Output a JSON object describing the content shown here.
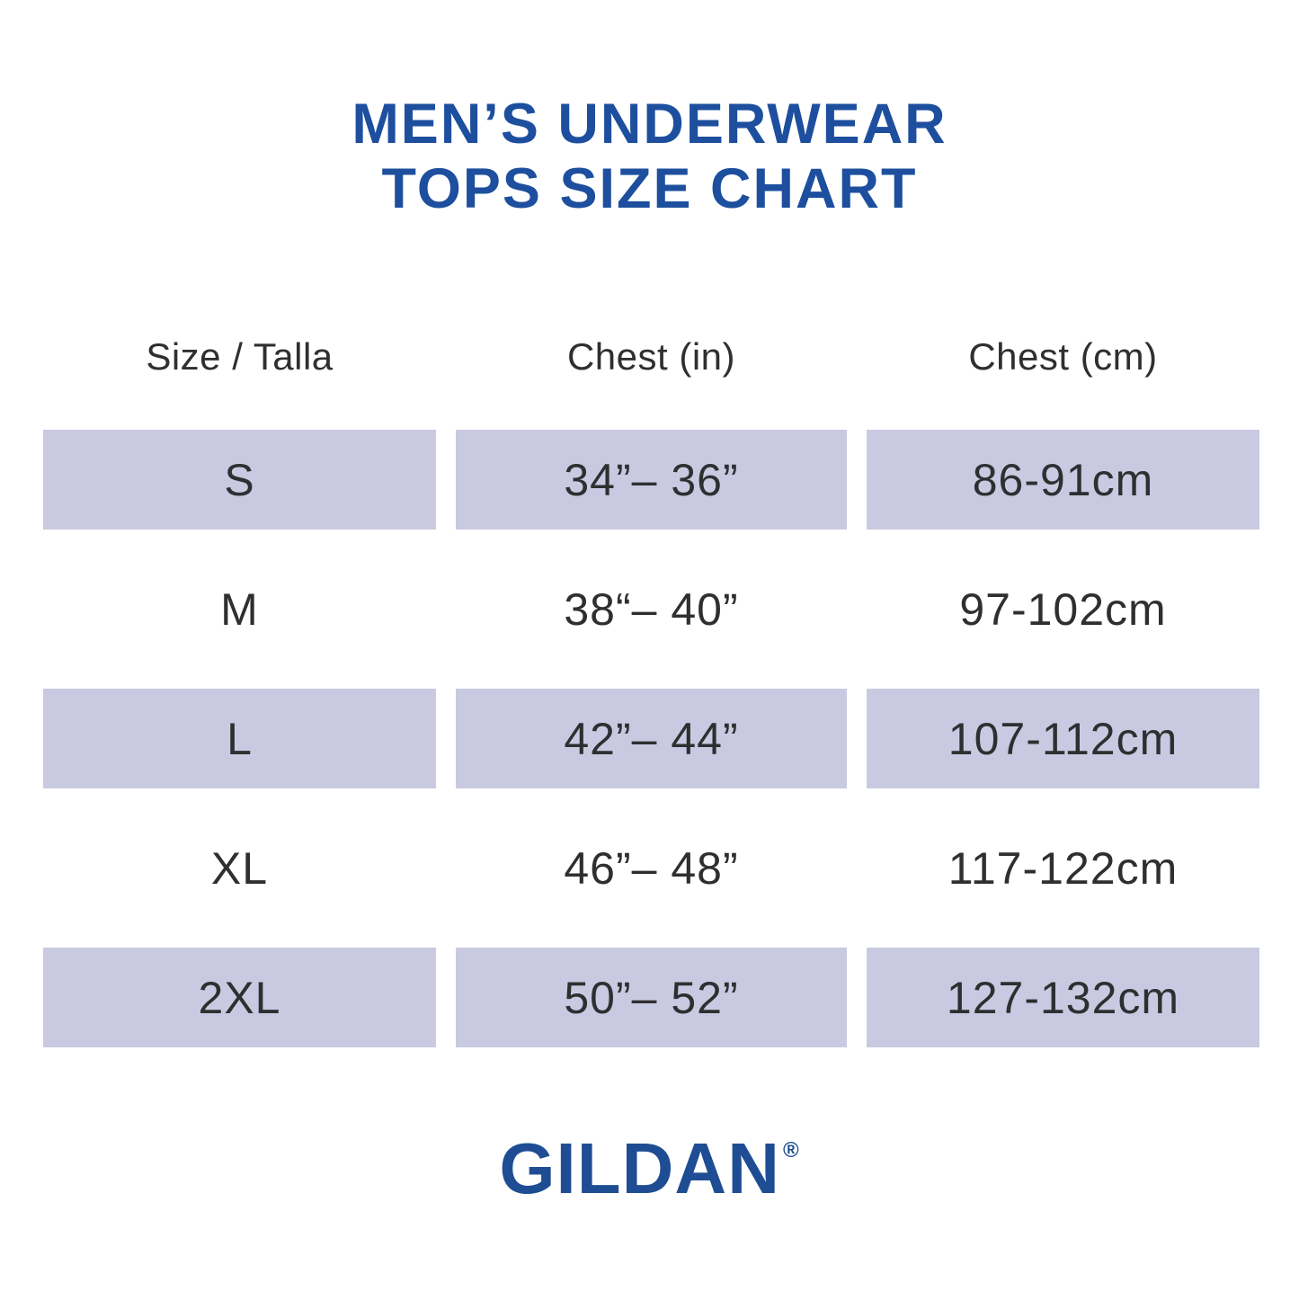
{
  "title": {
    "line1": "MEN’S UNDERWEAR",
    "line2": "TOPS SIZE CHART"
  },
  "chart_data": {
    "type": "table",
    "title": "MEN’S UNDERWEAR TOPS SIZE CHART",
    "columns": [
      "Size / Talla",
      "Chest (in)",
      "Chest (cm)"
    ],
    "rows": [
      [
        "S",
        "34”– 36”",
        "86-91cm"
      ],
      [
        "M",
        "38“– 40”",
        "97-102cm"
      ],
      [
        "L",
        "42”– 44”",
        "107-112cm"
      ],
      [
        "XL",
        "46”– 48”",
        "117-122cm"
      ],
      [
        "2XL",
        "50”– 52”",
        "127-132cm"
      ]
    ]
  },
  "logo": {
    "text": "GILDAN",
    "registered": "®"
  },
  "colors": {
    "title_blue": "#1d4f9e",
    "logo_blue": "#1f4d93",
    "row_shade": "#c9cae1",
    "text": "#2f2f31"
  }
}
